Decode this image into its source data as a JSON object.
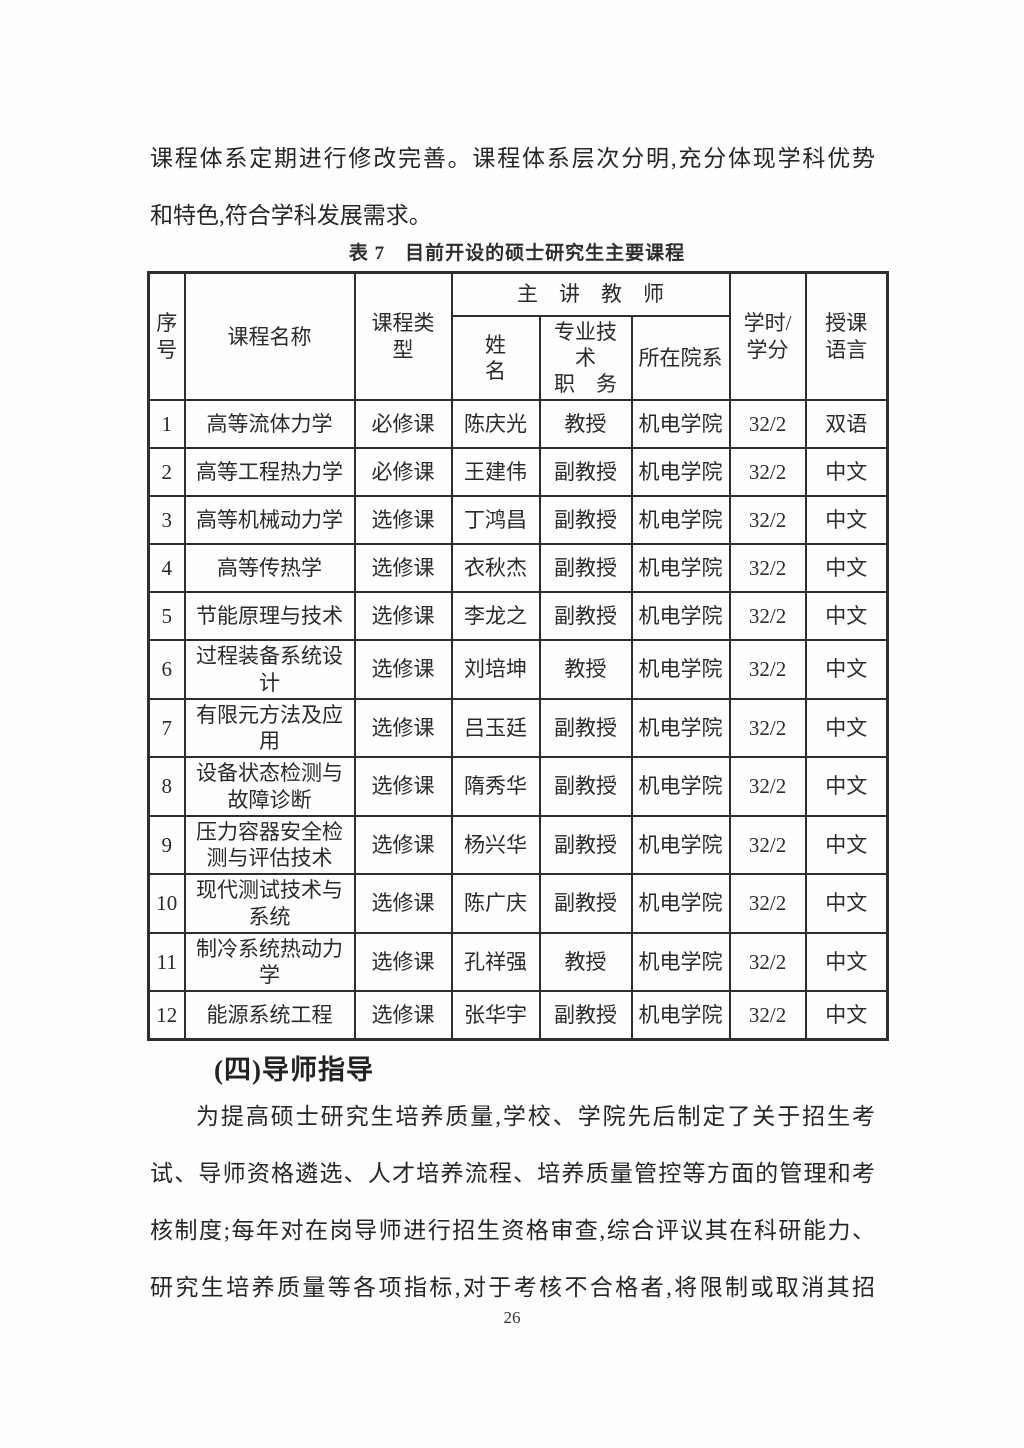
{
  "intro": {
    "lines": [
      "课程体系定期进行修改完善。课程体系层次分明,充分体现学科优势",
      "和特色,符合学科发展需求。"
    ]
  },
  "table": {
    "caption": "表 7　目前开设的硕士研究生主要课程",
    "header": {
      "seq": "序号",
      "course": "课程名称",
      "type": "课程类型",
      "teacher_group": "主　讲　教　师",
      "name": "姓　　名",
      "title": "专业技术\n职　务",
      "dept": "所在院系",
      "hours": "学时/\n学分",
      "lang": "授课\n语言"
    },
    "rows": [
      {
        "num": "1",
        "name": "高等流体力学",
        "type": "必修课",
        "teacher": "陈庆光",
        "title": "教授",
        "dept": "机电学院",
        "hours": "32/2",
        "lang": "双语"
      },
      {
        "num": "2",
        "name": "高等工程热力学",
        "type": "必修课",
        "teacher": "王建伟",
        "title": "副教授",
        "dept": "机电学院",
        "hours": "32/2",
        "lang": "中文"
      },
      {
        "num": "3",
        "name": "高等机械动力学",
        "type": "选修课",
        "teacher": "丁鸿昌",
        "title": "副教授",
        "dept": "机电学院",
        "hours": "32/2",
        "lang": "中文"
      },
      {
        "num": "4",
        "name": "高等传热学",
        "type": "选修课",
        "teacher": "衣秋杰",
        "title": "副教授",
        "dept": "机电学院",
        "hours": "32/2",
        "lang": "中文"
      },
      {
        "num": "5",
        "name": "节能原理与技术",
        "type": "选修课",
        "teacher": "李龙之",
        "title": "副教授",
        "dept": "机电学院",
        "hours": "32/2",
        "lang": "中文"
      },
      {
        "num": "6",
        "name": "过程装备系统设计",
        "type": "选修课",
        "teacher": "刘培坤",
        "title": "教授",
        "dept": "机电学院",
        "hours": "32/2",
        "lang": "中文"
      },
      {
        "num": "7",
        "name": "有限元方法及应用",
        "type": "选修课",
        "teacher": "吕玉廷",
        "title": "副教授",
        "dept": "机电学院",
        "hours": "32/2",
        "lang": "中文"
      },
      {
        "num": "8",
        "name": "设备状态检测与故障诊断",
        "type": "选修课",
        "teacher": "隋秀华",
        "title": "副教授",
        "dept": "机电学院",
        "hours": "32/2",
        "lang": "中文"
      },
      {
        "num": "9",
        "name": "压力容器安全检测与评估技术",
        "type": "选修课",
        "teacher": "杨兴华",
        "title": "副教授",
        "dept": "机电学院",
        "hours": "32/2",
        "lang": "中文"
      },
      {
        "num": "10",
        "name": "现代测试技术与系统",
        "type": "选修课",
        "teacher": "陈广庆",
        "title": "副教授",
        "dept": "机电学院",
        "hours": "32/2",
        "lang": "中文"
      },
      {
        "num": "11",
        "name": "制冷系统热动力学",
        "type": "选修课",
        "teacher": "孔祥强",
        "title": "教授",
        "dept": "机电学院",
        "hours": "32/2",
        "lang": "中文"
      },
      {
        "num": "12",
        "name": "能源系统工程",
        "type": "选修课",
        "teacher": "张华宇",
        "title": "副教授",
        "dept": "机电学院",
        "hours": "32/2",
        "lang": "中文"
      }
    ]
  },
  "section": {
    "heading": "(四)导师指导",
    "lines": [
      "为提高硕士研究生培养质量,学校、学院先后制定了关于招生考",
      "试、导师资格遴选、人才培养流程、培养质量管控等方面的管理和考",
      "核制度;每年对在岗导师进行招生资格审查,综合评议其在科研能力、",
      "研究生培养质量等各项指标,对于考核不合格者,将限制或取消其招"
    ]
  },
  "footer": {
    "page_number": "26"
  }
}
